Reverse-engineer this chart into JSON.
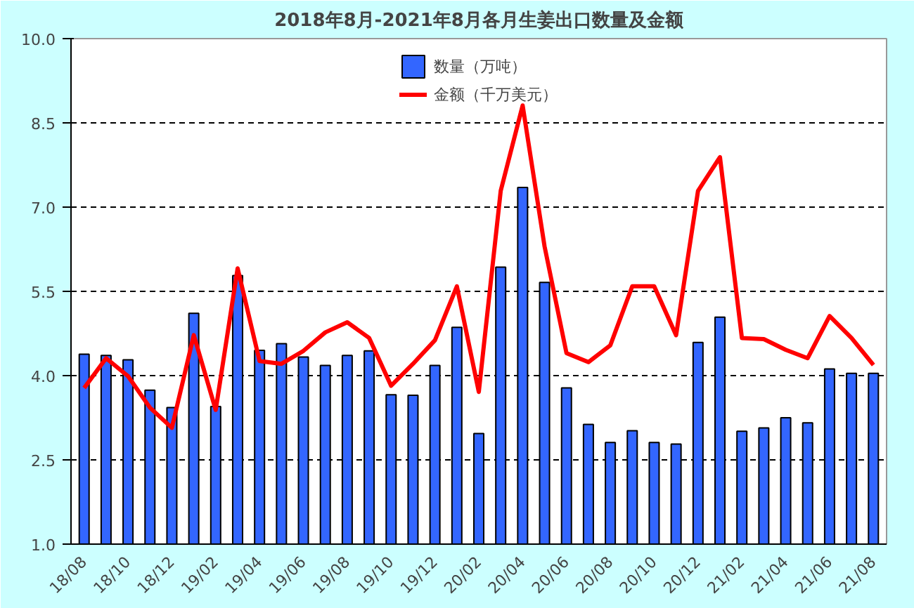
{
  "chart_data": {
    "type": "bar",
    "title": "2018年8月-2021年8月各月生姜出口数量及金额",
    "categories": [
      "18/08",
      null,
      "18/10",
      null,
      "18/12",
      null,
      "19/02",
      null,
      "19/04",
      null,
      "19/06",
      null,
      "19/08",
      null,
      "19/10",
      null,
      "19/12",
      null,
      "20/02",
      null,
      "20/04",
      null,
      "20/06",
      null,
      "20/08",
      null,
      "20/10",
      null,
      "20/12",
      null,
      "21/02",
      null,
      "21/04",
      null,
      "21/06",
      null,
      "21/08"
    ],
    "series": [
      {
        "name": "数量（万吨）",
        "color": "#3366ff",
        "values": [
          4.38,
          4.36,
          4.28,
          3.74,
          3.43,
          5.11,
          3.45,
          5.78,
          4.45,
          4.57,
          4.33,
          4.18,
          4.36,
          4.44,
          3.66,
          3.65,
          4.18,
          4.86,
          2.97,
          5.93,
          7.35,
          5.66,
          3.78,
          3.13,
          2.81,
          3.02,
          2.81,
          2.78,
          4.59,
          5.04,
          3.01,
          3.07,
          3.25,
          3.16,
          4.12,
          4.04,
          4.04
        ]
      },
      {
        "name": "金额（千万美元）",
        "type": "line",
        "color": "#ff0000",
        "values": [
          3.78,
          4.31,
          3.99,
          3.43,
          3.07,
          4.72,
          3.39,
          5.91,
          4.26,
          4.21,
          4.44,
          4.77,
          4.95,
          4.67,
          3.82,
          4.21,
          4.63,
          5.59,
          3.71,
          7.29,
          8.81,
          6.3,
          4.4,
          4.24,
          4.54,
          5.59,
          5.59,
          4.72,
          7.29,
          7.89,
          4.67,
          4.65,
          4.46,
          4.31,
          5.06,
          4.67,
          4.19
        ]
      }
    ],
    "ylim": [
      1.0,
      10.0
    ],
    "yticks": [
      {
        "value": 1,
        "label": "1.0"
      },
      {
        "value": 2.5,
        "label": "2.5"
      },
      {
        "value": 4,
        "label": "4.0"
      },
      {
        "value": 5.5,
        "label": "5.5"
      },
      {
        "value": 7,
        "label": "7.0"
      },
      {
        "value": 8.5,
        "label": "8.5"
      },
      {
        "value": 10,
        "label": "10.0"
      }
    ],
    "grid": "y",
    "legend": "top",
    "line_style": "solid",
    "marker": "none"
  }
}
